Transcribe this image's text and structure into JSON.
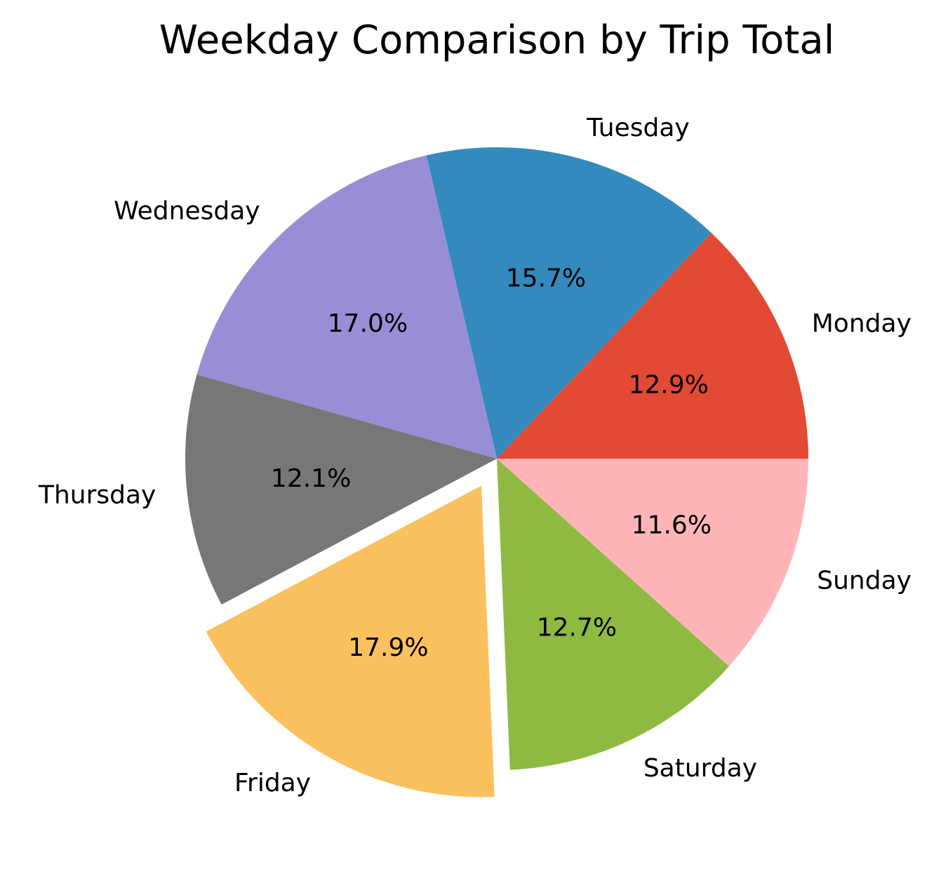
{
  "chart_data": {
    "type": "pie",
    "title": "Weekday Comparison by Trip Total",
    "start": "Monday, counterclockwise from 3 o'clock",
    "exploded": "Friday",
    "slices": [
      {
        "label": "Monday",
        "value": 12.9,
        "pct_text": "12.9%",
        "color": "#E24A33"
      },
      {
        "label": "Tuesday",
        "value": 15.7,
        "pct_text": "15.7%",
        "color": "#348ABD"
      },
      {
        "label": "Wednesday",
        "value": 17.0,
        "pct_text": "17.0%",
        "color": "#988ED5"
      },
      {
        "label": "Thursday",
        "value": 12.1,
        "pct_text": "12.1%",
        "color": "#777777"
      },
      {
        "label": "Friday",
        "value": 17.9,
        "pct_text": "17.9%",
        "color": "#FBC15E"
      },
      {
        "label": "Saturday",
        "value": 12.7,
        "pct_text": "12.7%",
        "color": "#8EBA42"
      },
      {
        "label": "Sunday",
        "value": 11.6,
        "pct_text": "11.6%",
        "color": "#FFB5B8"
      }
    ]
  }
}
